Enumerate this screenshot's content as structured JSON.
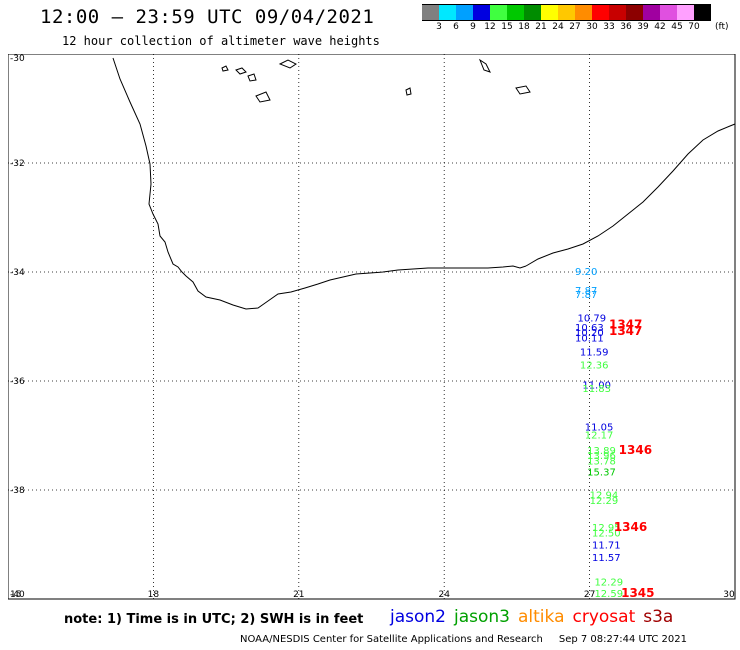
{
  "header": {
    "title": "12:00 – 23:59 UTC 09/04/2021",
    "subtitle": "12 hour collection of altimeter wave heights"
  },
  "legend": {
    "unit": "(ft)",
    "bins": [
      {
        "label": "3",
        "color": "#808080"
      },
      {
        "label": "6",
        "color": "#00e8ff"
      },
      {
        "label": "9",
        "color": "#00a0ff"
      },
      {
        "label": "12",
        "color": "#0000e0"
      },
      {
        "label": "15",
        "color": "#40ff40"
      },
      {
        "label": "18",
        "color": "#00c800"
      },
      {
        "label": "21",
        "color": "#008c00"
      },
      {
        "label": "24",
        "color": "#ffff00"
      },
      {
        "label": "27",
        "color": "#ffc800"
      },
      {
        "label": "30",
        "color": "#ff8c00"
      },
      {
        "label": "33",
        "color": "#ff0000"
      },
      {
        "label": "36",
        "color": "#c80000"
      },
      {
        "label": "39",
        "color": "#8c0000"
      },
      {
        "label": "42",
        "color": "#a000a0"
      },
      {
        "label": "45",
        "color": "#e050e0"
      },
      {
        "label": "70",
        "color": "#ffa0ff"
      },
      {
        "label": "",
        "color": "#000000"
      }
    ]
  },
  "axes": {
    "lon_ticks": [
      "15",
      "18",
      "21",
      "24",
      "27",
      "30"
    ],
    "lat_ticks": [
      "-30",
      "-32",
      "-34",
      "-36",
      "-38",
      "-40"
    ]
  },
  "observations": [
    {
      "text": "9.20",
      "lon": 26.7,
      "lat": -34.0,
      "color": "#00a0ff"
    },
    {
      "text": "7.87",
      "lon": 26.7,
      "lat": -34.35,
      "color": "#00a0ff"
    },
    {
      "text": "7.87",
      "lon": 26.7,
      "lat": -34.42,
      "color": "#00a0ff"
    },
    {
      "text": "10.79",
      "lon": 26.75,
      "lat": -34.85,
      "color": "#0000e0"
    },
    {
      "text": "10.63",
      "lon": 26.7,
      "lat": -35.03,
      "color": "#0000e0"
    },
    {
      "text": "10.20",
      "lon": 26.7,
      "lat": -35.12,
      "color": "#0000e0"
    },
    {
      "text": "10.11",
      "lon": 26.7,
      "lat": -35.22,
      "color": "#0000e0"
    },
    {
      "text": "11.59",
      "lon": 26.8,
      "lat": -35.48,
      "color": "#0000e0"
    },
    {
      "text": "12.36",
      "lon": 26.8,
      "lat": -35.72,
      "color": "#40ff40"
    },
    {
      "text": "11.00",
      "lon": 26.85,
      "lat": -36.08,
      "color": "#0000e0"
    },
    {
      "text": "11.83",
      "lon": 26.85,
      "lat": -36.15,
      "color": "#40ff40"
    },
    {
      "text": "11.05",
      "lon": 26.9,
      "lat": -36.85,
      "color": "#0000e0"
    },
    {
      "text": "12.17",
      "lon": 26.9,
      "lat": -37.0,
      "color": "#40ff40"
    },
    {
      "text": "13.89",
      "lon": 26.95,
      "lat": -37.28,
      "color": "#40ff40"
    },
    {
      "text": "13.96",
      "lon": 26.95,
      "lat": -37.38,
      "color": "#40ff40"
    },
    {
      "text": "13.78",
      "lon": 26.95,
      "lat": -37.48,
      "color": "#40ff40"
    },
    {
      "text": "15.37",
      "lon": 26.95,
      "lat": -37.68,
      "color": "#00c800"
    },
    {
      "text": "12.94",
      "lon": 27.0,
      "lat": -38.1,
      "color": "#40ff40"
    },
    {
      "text": "12.29",
      "lon": 27.0,
      "lat": -38.2,
      "color": "#40ff40"
    },
    {
      "text": "12.95",
      "lon": 27.05,
      "lat": -38.7,
      "color": "#40ff40"
    },
    {
      "text": "12.50",
      "lon": 27.05,
      "lat": -38.8,
      "color": "#40ff40"
    },
    {
      "text": "11.71",
      "lon": 27.05,
      "lat": -39.02,
      "color": "#0000e0"
    },
    {
      "text": "11.57",
      "lon": 27.05,
      "lat": -39.25,
      "color": "#0000e0"
    },
    {
      "text": "12.29",
      "lon": 27.1,
      "lat": -39.7,
      "color": "#40ff40"
    },
    {
      "text": "12.59",
      "lon": 27.1,
      "lat": -40.0,
      "color": "#40ff40"
    },
    {
      "text": "1347",
      "lon": 27.4,
      "lat": -34.98,
      "color": "#ff0000"
    },
    {
      "text": "1347",
      "lon": 27.4,
      "lat": -35.1,
      "color": "#ff0000"
    },
    {
      "text": "1346",
      "lon": 27.6,
      "lat": -37.28,
      "color": "#ff0000"
    },
    {
      "text": "1346",
      "lon": 27.5,
      "lat": -38.7,
      "color": "#ff0000"
    },
    {
      "text": "1345",
      "lon": 27.65,
      "lat": -40.0,
      "color": "#ff0000"
    }
  ],
  "note": "note:  1) Time is in UTC;  2) SWH is in feet",
  "satellites": [
    {
      "name": "jason2",
      "color": "#0000e0"
    },
    {
      "name": "jason3",
      "color": "#00a000"
    },
    {
      "name": "altika",
      "color": "#ff8c00"
    },
    {
      "name": "cryosat",
      "color": "#ff0000"
    },
    {
      "name": "s3a",
      "color": "#a00000"
    }
  ],
  "footer": {
    "credit": "NOAA/NESDIS Center for Satellite Applications and Research",
    "timestamp": "Sep  7 08:27:44 UTC 2021"
  }
}
